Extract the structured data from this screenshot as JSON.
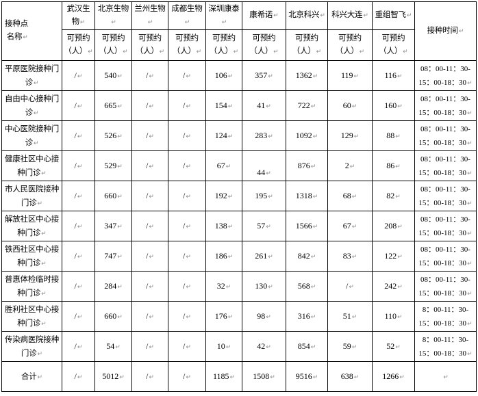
{
  "marks": {
    "return": "↵"
  },
  "table": {
    "corner_header": "接种点\n 名称",
    "time_header": "接种时间",
    "subheader": "可预约\n（人）",
    "columns": [
      "武汉生\n物",
      "北京生物",
      "兰州生物",
      "成都生物",
      "深圳康泰",
      "康希诺",
      "北京科兴",
      "科兴大连",
      "重组智飞"
    ],
    "rows": [
      {
        "name": "平原医院接种门\n诊",
        "values": [
          "/",
          "540",
          "/",
          "/",
          "106",
          "357",
          "1362",
          "119",
          "116"
        ],
        "time": "08：00-11：30-\n15：00-18：30"
      },
      {
        "name": "自由中心接种门\n诊",
        "values": [
          "/",
          "665",
          "/",
          "/",
          "154",
          "41",
          "722",
          "60",
          "160"
        ],
        "time": "08：00-11：30-\n15：00-18：30"
      },
      {
        "name": "中心医院接种门\n诊",
        "values": [
          "/",
          "526",
          "/",
          "/",
          "124",
          "283",
          "1092",
          "129",
          "88"
        ],
        "time": "08：00-11：30-\n15：00-18：30"
      },
      {
        "name": "健康社区中心接\n种门诊",
        "values": [
          "/",
          "529",
          "/",
          "/",
          "67",
          "\n44",
          "876",
          "2",
          "86"
        ],
        "time": "08：00-11：30-\n15：00-18：30"
      },
      {
        "name": "市人民医院接种\n门诊",
        "values": [
          "/",
          "660",
          "/",
          "/",
          "192",
          "195",
          "1318",
          "68",
          "82"
        ],
        "time": "08：00-11：30-\n15：00-18：30"
      },
      {
        "name": "解放社区中心接\n种门诊",
        "values": [
          "/",
          "347",
          "/",
          "/",
          "138",
          "57",
          "1566",
          "67",
          "208"
        ],
        "time": "08：00-11：30-\n15：00-18：30"
      },
      {
        "name": "铁西社区中心接\n种门诊",
        "values": [
          "/",
          "747",
          "/",
          "/",
          "186",
          "261",
          "842",
          "83",
          "122"
        ],
        "time": "08：00-11：30-\n15：00-18：30"
      },
      {
        "name": "普惠体检临时接\n种门诊",
        "values": [
          "/",
          "284",
          "/",
          "/",
          "32",
          "130",
          "568",
          "/",
          "242"
        ],
        "time": "08：00-11：30-\n15：00-18：30"
      },
      {
        "name": "胜利社区中心接\n种门诊",
        "values": [
          "/",
          "660",
          "/",
          "/",
          "176",
          "98",
          "316",
          "51",
          "110"
        ],
        "time": "8：00-11：30-\n15：00-18：30"
      },
      {
        "name": "传染病医院接种\n门诊",
        "values": [
          "/",
          "54",
          "/",
          "/",
          "10",
          "42",
          "854",
          "59",
          "52"
        ],
        "time": "8：00-11：30-\n15：00-18：30"
      }
    ],
    "total": {
      "name": "合计",
      "values": [
        "/",
        "5012",
        "/",
        "/",
        "1185",
        "1508",
        "9516",
        "638",
        "1266"
      ],
      "time": ""
    }
  }
}
